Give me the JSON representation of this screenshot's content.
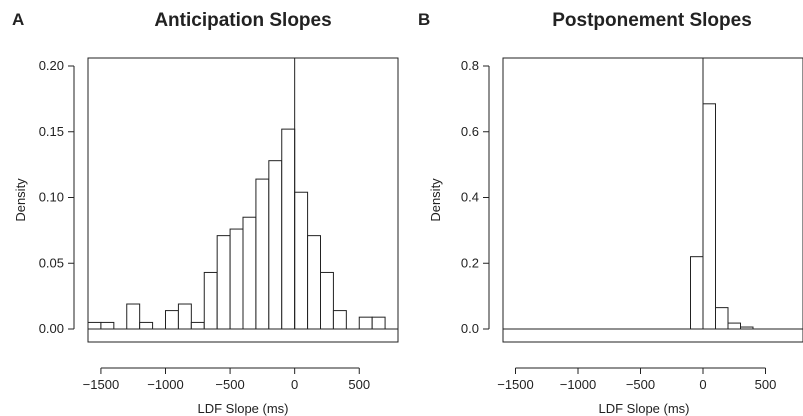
{
  "chart_data": [
    {
      "type": "histogram",
      "panel_label": "A",
      "title": "Anticipation Slopes",
      "xlabel": "LDF Slope (ms)",
      "ylabel": "Density",
      "xlim": [
        -1600,
        800
      ],
      "ylim": [
        0,
        0.2
      ],
      "x_ticks": [
        -1500,
        -1000,
        -500,
        0,
        500
      ],
      "y_ticks": [
        0.0,
        0.05,
        0.1,
        0.15,
        0.2
      ],
      "reference_line_x": 0,
      "bin_width": 100,
      "bin_starts": [
        -1600,
        -1500,
        -1400,
        -1300,
        -1200,
        -1100,
        -1000,
        -900,
        -800,
        -700,
        -600,
        -500,
        -400,
        -300,
        -200,
        -100,
        0,
        100,
        200,
        300,
        400,
        500,
        600
      ],
      "values": [
        0.005,
        0.005,
        0.0,
        0.019,
        0.005,
        0.0,
        0.014,
        0.019,
        0.005,
        0.043,
        0.071,
        0.076,
        0.085,
        0.114,
        0.128,
        0.152,
        0.104,
        0.071,
        0.043,
        0.014,
        0.0,
        0.009,
        0.009
      ],
      "grid": false
    },
    {
      "type": "histogram",
      "panel_label": "B",
      "title": "Postponement Slopes",
      "xlabel": "LDF Slope (ms)",
      "ylabel": "Density",
      "xlim": [
        -1600,
        800
      ],
      "ylim": [
        0,
        0.8
      ],
      "x_ticks": [
        -1500,
        -1000,
        -500,
        0,
        500
      ],
      "y_ticks": [
        0.0,
        0.2,
        0.4,
        0.6,
        0.8
      ],
      "reference_line_x": 0,
      "reference_line_y": 0,
      "bin_width": 100,
      "bin_starts": [
        -100,
        0,
        100,
        200,
        300
      ],
      "values": [
        0.22,
        0.685,
        0.065,
        0.018,
        0.006
      ],
      "grid": false
    }
  ]
}
